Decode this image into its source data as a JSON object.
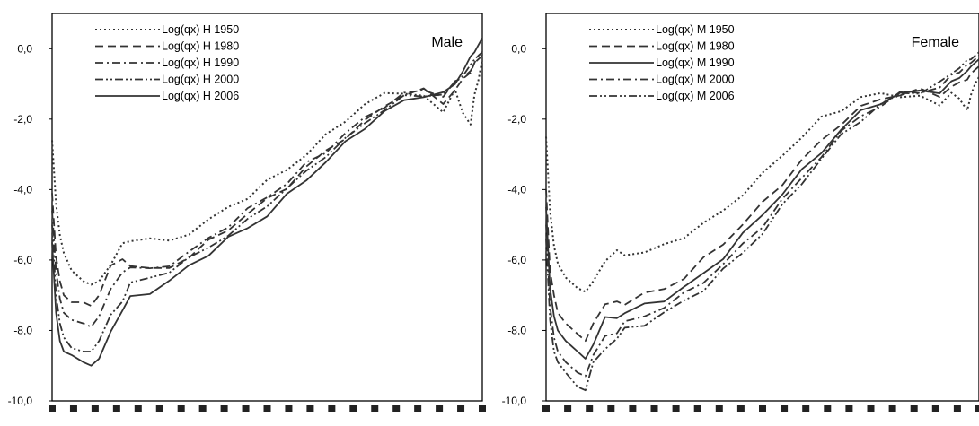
{
  "chart_data": [
    {
      "type": "line",
      "title": "Male",
      "ylim": [
        -10,
        1
      ],
      "yticks": [
        "0,0",
        "-2,0",
        "-4,0",
        "-6,0",
        "-8,0",
        "-10,0"
      ],
      "ytick_values": [
        0,
        -2,
        -4,
        -6,
        -8,
        -10
      ],
      "xlim": [
        0,
        110
      ],
      "grid": false,
      "legend_position": "top-left",
      "series": [
        {
          "name": "Log(qx) H 1950",
          "dash": "dot",
          "x": [
            0,
            1,
            2,
            3,
            5,
            8,
            10,
            12,
            15,
            18,
            20,
            25,
            30,
            35,
            40,
            45,
            50,
            55,
            60,
            65,
            70,
            75,
            80,
            85,
            90,
            95,
            100,
            103,
            105,
            107,
            108,
            109,
            110
          ],
          "y": [
            -2.6,
            -4.4,
            -5.3,
            -5.8,
            -6.3,
            -6.6,
            -6.7,
            -6.6,
            -6.1,
            -5.6,
            -5.4,
            -5.4,
            -5.5,
            -5.2,
            -4.9,
            -4.5,
            -4.2,
            -3.8,
            -3.4,
            -3.0,
            -2.5,
            -2.0,
            -1.6,
            -1.3,
            -1.2,
            -1.4,
            -1.8,
            -1.1,
            -1.9,
            -2.1,
            -1.3,
            -0.9,
            -0.3
          ]
        },
        {
          "name": "Log(qx) H 1980",
          "dash": "dash",
          "x": [
            0,
            1,
            2,
            3,
            5,
            8,
            10,
            12,
            15,
            18,
            20,
            25,
            30,
            35,
            40,
            45,
            50,
            55,
            60,
            65,
            70,
            75,
            80,
            85,
            90,
            95,
            100,
            103,
            105,
            107,
            108,
            109,
            110
          ],
          "y": [
            -4.1,
            -5.9,
            -6.6,
            -7.0,
            -7.2,
            -7.2,
            -7.3,
            -7.0,
            -6.2,
            -6.0,
            -6.1,
            -6.3,
            -6.2,
            -5.9,
            -5.5,
            -5.1,
            -4.7,
            -4.3,
            -3.9,
            -3.4,
            -2.9,
            -2.5,
            -2.1,
            -1.6,
            -1.3,
            -1.2,
            -1.5,
            -1.2,
            -0.9,
            -0.6,
            -0.4,
            -0.2,
            -0.1
          ]
        },
        {
          "name": "Log(qx) H 1990",
          "dash": "dashdot",
          "x": [
            0,
            1,
            2,
            3,
            5,
            8,
            10,
            12,
            15,
            18,
            20,
            25,
            30,
            35,
            40,
            45,
            50,
            55,
            60,
            65,
            70,
            75,
            80,
            85,
            90,
            95,
            100,
            103,
            105,
            107,
            108,
            109,
            110
          ],
          "y": [
            -4.6,
            -6.3,
            -7.1,
            -7.5,
            -7.7,
            -7.8,
            -7.9,
            -7.6,
            -6.9,
            -6.3,
            -6.2,
            -6.3,
            -6.1,
            -5.8,
            -5.4,
            -5.0,
            -4.6,
            -4.2,
            -3.8,
            -3.3,
            -2.9,
            -2.4,
            -2.0,
            -1.6,
            -1.3,
            -1.2,
            -1.3,
            -1.0,
            -0.8,
            -0.6,
            -0.4,
            -0.3,
            -0.2
          ]
        },
        {
          "name": "Log(qx) H 2000",
          "dash": "dashdotdot",
          "x": [
            0,
            1,
            2,
            3,
            5,
            8,
            10,
            12,
            15,
            18,
            20,
            25,
            30,
            35,
            40,
            45,
            50,
            55,
            60,
            65,
            70,
            75,
            80,
            85,
            90,
            95,
            100,
            103,
            105,
            107,
            108,
            109,
            110
          ],
          "y": [
            -5.0,
            -7.0,
            -7.8,
            -8.2,
            -8.5,
            -8.6,
            -8.6,
            -8.3,
            -7.6,
            -7.1,
            -6.7,
            -6.5,
            -6.3,
            -6.0,
            -5.6,
            -5.3,
            -4.9,
            -4.4,
            -4.0,
            -3.5,
            -3.0,
            -2.6,
            -2.1,
            -1.7,
            -1.4,
            -1.3,
            -1.3,
            -1.0,
            -0.7,
            -0.5,
            -0.3,
            -0.2,
            -0.1
          ]
        },
        {
          "name": "Log(qx) H 2006",
          "dash": "solid",
          "x": [
            0,
            1,
            2,
            3,
            5,
            8,
            10,
            12,
            15,
            18,
            20,
            25,
            30,
            35,
            40,
            45,
            50,
            55,
            60,
            65,
            70,
            75,
            80,
            85,
            90,
            95,
            100,
            103,
            105,
            107,
            108,
            109,
            110
          ],
          "y": [
            -5.5,
            -7.5,
            -8.3,
            -8.6,
            -8.7,
            -8.9,
            -9.0,
            -8.8,
            -8.0,
            -7.4,
            -7.1,
            -6.9,
            -6.6,
            -6.2,
            -5.8,
            -5.4,
            -5.1,
            -4.7,
            -4.2,
            -3.7,
            -3.2,
            -2.7,
            -2.2,
            -1.8,
            -1.5,
            -1.3,
            -1.3,
            -1.0,
            -0.6,
            -0.3,
            -0.1,
            0.1,
            0.3
          ]
        }
      ]
    },
    {
      "type": "line",
      "title": "Female",
      "ylim": [
        -10,
        1
      ],
      "yticks": [
        "0,0",
        "-2,0",
        "-4,0",
        "-6,0",
        "-8,0",
        "-10,0"
      ],
      "ytick_values": [
        0,
        -2,
        -4,
        -6,
        -8,
        -10
      ],
      "xlim": [
        0,
        110
      ],
      "grid": false,
      "legend_position": "top-left",
      "series": [
        {
          "name": "Log(qx) M 1950",
          "dash": "dot",
          "x": [
            0,
            1,
            2,
            3,
            5,
            8,
            10,
            12,
            15,
            18,
            20,
            25,
            30,
            35,
            40,
            45,
            50,
            55,
            60,
            65,
            70,
            75,
            80,
            85,
            90,
            95,
            100,
            103,
            105,
            107,
            108,
            109,
            110
          ],
          "y": [
            -2.5,
            -4.6,
            -5.6,
            -6.1,
            -6.5,
            -6.8,
            -6.9,
            -6.6,
            -6.0,
            -5.8,
            -5.8,
            -5.8,
            -5.6,
            -5.3,
            -5.0,
            -4.6,
            -4.1,
            -3.6,
            -3.0,
            -2.5,
            -2.0,
            -1.7,
            -1.4,
            -1.3,
            -1.3,
            -1.4,
            -1.6,
            -1.2,
            -1.5,
            -1.7,
            -1.3,
            -1.0,
            -0.8
          ]
        },
        {
          "name": "Log(qx) M 1980",
          "dash": "dash",
          "x": [
            0,
            1,
            2,
            3,
            5,
            8,
            10,
            12,
            15,
            18,
            20,
            25,
            30,
            35,
            40,
            45,
            50,
            55,
            60,
            65,
            70,
            75,
            80,
            85,
            90,
            95,
            100,
            103,
            105,
            107,
            108,
            109,
            110
          ],
          "y": [
            -4.0,
            -6.3,
            -7.0,
            -7.5,
            -7.8,
            -8.1,
            -8.3,
            -7.8,
            -7.3,
            -7.2,
            -7.2,
            -7.0,
            -6.8,
            -6.5,
            -6.0,
            -5.5,
            -5.0,
            -4.4,
            -3.8,
            -3.2,
            -2.6,
            -2.1,
            -1.7,
            -1.4,
            -1.3,
            -1.2,
            -1.3,
            -1.1,
            -1.0,
            -0.8,
            -0.7,
            -0.6,
            -0.5
          ]
        },
        {
          "name": "Log(qx) M 1990",
          "dash": "solid",
          "x": [
            0,
            1,
            2,
            3,
            5,
            8,
            10,
            12,
            15,
            18,
            20,
            25,
            30,
            35,
            40,
            45,
            50,
            55,
            60,
            65,
            70,
            75,
            80,
            85,
            90,
            95,
            100,
            103,
            105,
            107,
            108,
            109,
            110
          ],
          "y": [
            -4.5,
            -6.8,
            -7.6,
            -8.0,
            -8.3,
            -8.6,
            -8.8,
            -8.4,
            -7.7,
            -7.6,
            -7.5,
            -7.3,
            -7.1,
            -6.8,
            -6.4,
            -5.9,
            -5.3,
            -4.7,
            -4.1,
            -3.5,
            -2.9,
            -2.3,
            -1.8,
            -1.5,
            -1.3,
            -1.2,
            -1.2,
            -1.0,
            -0.8,
            -0.6,
            -0.5,
            -0.4,
            -0.3
          ]
        },
        {
          "name": "Log(qx) M 2000",
          "dash": "dashdot",
          "x": [
            0,
            1,
            2,
            3,
            5,
            8,
            10,
            12,
            15,
            18,
            20,
            25,
            30,
            35,
            40,
            45,
            50,
            55,
            60,
            65,
            70,
            75,
            80,
            85,
            90,
            95,
            100,
            103,
            105,
            107,
            108,
            109,
            110
          ],
          "y": [
            -5.0,
            -7.3,
            -8.2,
            -8.6,
            -8.9,
            -9.2,
            -9.3,
            -8.7,
            -8.2,
            -8.0,
            -7.8,
            -7.6,
            -7.3,
            -7.0,
            -6.6,
            -6.1,
            -5.6,
            -5.0,
            -4.3,
            -3.7,
            -3.0,
            -2.4,
            -1.9,
            -1.6,
            -1.3,
            -1.2,
            -1.1,
            -0.8,
            -0.6,
            -0.5,
            -0.4,
            -0.3,
            -0.2
          ]
        },
        {
          "name": "Log(qx) M 2006",
          "dash": "dashdotdot",
          "x": [
            0,
            1,
            2,
            3,
            5,
            8,
            10,
            12,
            15,
            18,
            20,
            25,
            30,
            35,
            40,
            45,
            50,
            55,
            60,
            65,
            70,
            75,
            80,
            85,
            90,
            95,
            100,
            103,
            105,
            107,
            108,
            109,
            110
          ],
          "y": [
            -5.4,
            -7.7,
            -8.6,
            -8.9,
            -9.2,
            -9.6,
            -9.7,
            -8.9,
            -8.5,
            -8.2,
            -8.0,
            -7.8,
            -7.5,
            -7.2,
            -6.8,
            -6.3,
            -5.8,
            -5.2,
            -4.5,
            -3.8,
            -3.1,
            -2.5,
            -2.0,
            -1.6,
            -1.3,
            -1.2,
            -1.0,
            -0.7,
            -0.5,
            -0.4,
            -0.3,
            -0.2,
            -0.1
          ]
        }
      ]
    }
  ]
}
